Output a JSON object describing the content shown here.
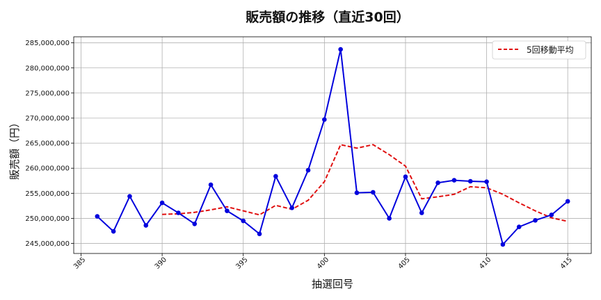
{
  "chart_data": {
    "type": "line",
    "title": "販売額の推移（直近30回）",
    "xlabel": "抽選回号",
    "ylabel": "販売額（円）",
    "x": [
      386,
      387,
      388,
      389,
      390,
      391,
      392,
      393,
      394,
      395,
      396,
      397,
      398,
      399,
      400,
      401,
      402,
      403,
      404,
      405,
      406,
      407,
      408,
      409,
      410,
      411,
      412,
      413,
      414,
      415
    ],
    "xlim": [
      384.55,
      416.45
    ],
    "ylim": [
      243000000,
      286200000
    ],
    "xticks": [
      385,
      390,
      395,
      400,
      405,
      410,
      415
    ],
    "xtick_labels": [
      "385",
      "390",
      "395",
      "400",
      "405",
      "410",
      "415"
    ],
    "yticks": [
      245000000,
      250000000,
      255000000,
      260000000,
      265000000,
      270000000,
      275000000,
      280000000,
      285000000
    ],
    "ytick_labels": [
      "245,000,000",
      "250,000,000",
      "255,000,000",
      "260,000,000",
      "265,000,000",
      "270,000,000",
      "275,000,000",
      "280,000,000",
      "285,000,000"
    ],
    "grid": true,
    "legend_position": "top-right",
    "series": [
      {
        "name": "",
        "style": "solid-with-markers",
        "color": "#0000dd",
        "x": [
          386,
          387,
          388,
          389,
          390,
          391,
          392,
          393,
          394,
          395,
          396,
          397,
          398,
          399,
          400,
          401,
          402,
          403,
          404,
          405,
          406,
          407,
          408,
          409,
          410,
          411,
          412,
          413,
          414,
          415
        ],
        "values": [
          250400000,
          247400000,
          254400000,
          248600000,
          253100000,
          251100000,
          248900000,
          256700000,
          251500000,
          249500000,
          246900000,
          258400000,
          252100000,
          259600000,
          269700000,
          283700000,
          255100000,
          255200000,
          250000000,
          258300000,
          251100000,
          257100000,
          257600000,
          257400000,
          257300000,
          244800000,
          248300000,
          249600000,
          250700000,
          253400000
        ]
      },
      {
        "name": "5回移動平均",
        "style": "dashed",
        "color": "#e01010",
        "x": [
          390,
          391,
          392,
          393,
          394,
          395,
          396,
          397,
          398,
          399,
          400,
          401,
          402,
          403,
          404,
          405,
          406,
          407,
          408,
          409,
          410,
          411,
          412,
          413,
          414,
          415
        ],
        "values": [
          250800000,
          250900000,
          251200000,
          251700000,
          252300000,
          251500000,
          250700000,
          252600000,
          251800000,
          253600000,
          257300000,
          264700000,
          264000000,
          264700000,
          262700000,
          260400000,
          253900000,
          254300000,
          254800000,
          256300000,
          256100000,
          254800000,
          253100000,
          251500000,
          250100000,
          249400000
        ]
      }
    ]
  }
}
